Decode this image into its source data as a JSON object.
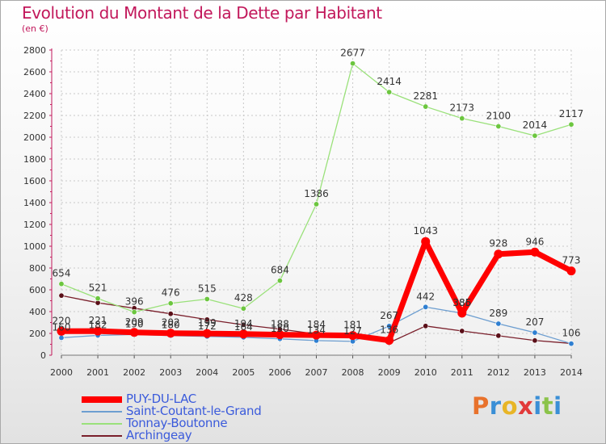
{
  "header": {
    "title": "Evolution du Montant de la Dette par Habitant",
    "unit": "(en €)"
  },
  "brand": {
    "text": "Proxiti",
    "letter_colors": [
      "#e8722c",
      "#3a8fd6",
      "#e8b526",
      "#e23a3a",
      "#3a8fd6",
      "#8bc34a",
      "#3a8fd6"
    ]
  },
  "chart_data": {
    "type": "line",
    "x": [
      "2000",
      "2001",
      "2002",
      "2003",
      "2004",
      "2005",
      "2006",
      "2007",
      "2008",
      "2009",
      "2010",
      "2011",
      "2012",
      "2013",
      "2014"
    ],
    "ylim": [
      0,
      2800
    ],
    "yticks": [
      0,
      200,
      400,
      600,
      800,
      1000,
      1200,
      1400,
      1600,
      1800,
      2000,
      2200,
      2400,
      2600,
      2800
    ],
    "grid": true,
    "legend_position": "bottom-left",
    "series": [
      {
        "name": "Archingeay",
        "color": "#7a1f2b",
        "marker": "#5a0f18",
        "width": 1.3,
        "labeled": false,
        "values": [
          547,
          481,
          431,
          380,
          327,
          279,
          240,
          194,
          192,
          115,
          268,
          222,
          179,
          135,
          108
        ]
      },
      {
        "name": "Saint-Coutant-le-Grand",
        "color": "#6d9ed0",
        "marker": "#2f7fd1",
        "width": 1.3,
        "labeled": true,
        "values": [
          160,
          182,
          190,
          180,
          172,
          164,
          150,
          134,
          127,
          267,
          442,
          385,
          289,
          207,
          106
        ]
      },
      {
        "name": "Tonnay-Boutonne",
        "color": "#9ae17a",
        "marker": "#6cc63f",
        "width": 1.3,
        "labeled": true,
        "values": [
          654,
          521,
          396,
          476,
          515,
          428,
          684,
          1386,
          2677,
          2414,
          2281,
          2173,
          2100,
          2014,
          2117
        ]
      },
      {
        "name": "PUY-DU-LAC",
        "color": "#ff0000",
        "marker": "#ff0000",
        "width": 7,
        "labeled": true,
        "values": [
          220,
          221,
          209,
          202,
          199,
          194,
          188,
          184,
          181,
          136,
          1043,
          386,
          928,
          946,
          773
        ]
      }
    ],
    "legend_order": [
      "PUY-DU-LAC",
      "Saint-Coutant-le-Grand",
      "Tonnay-Boutonne",
      "Archingeay"
    ]
  }
}
